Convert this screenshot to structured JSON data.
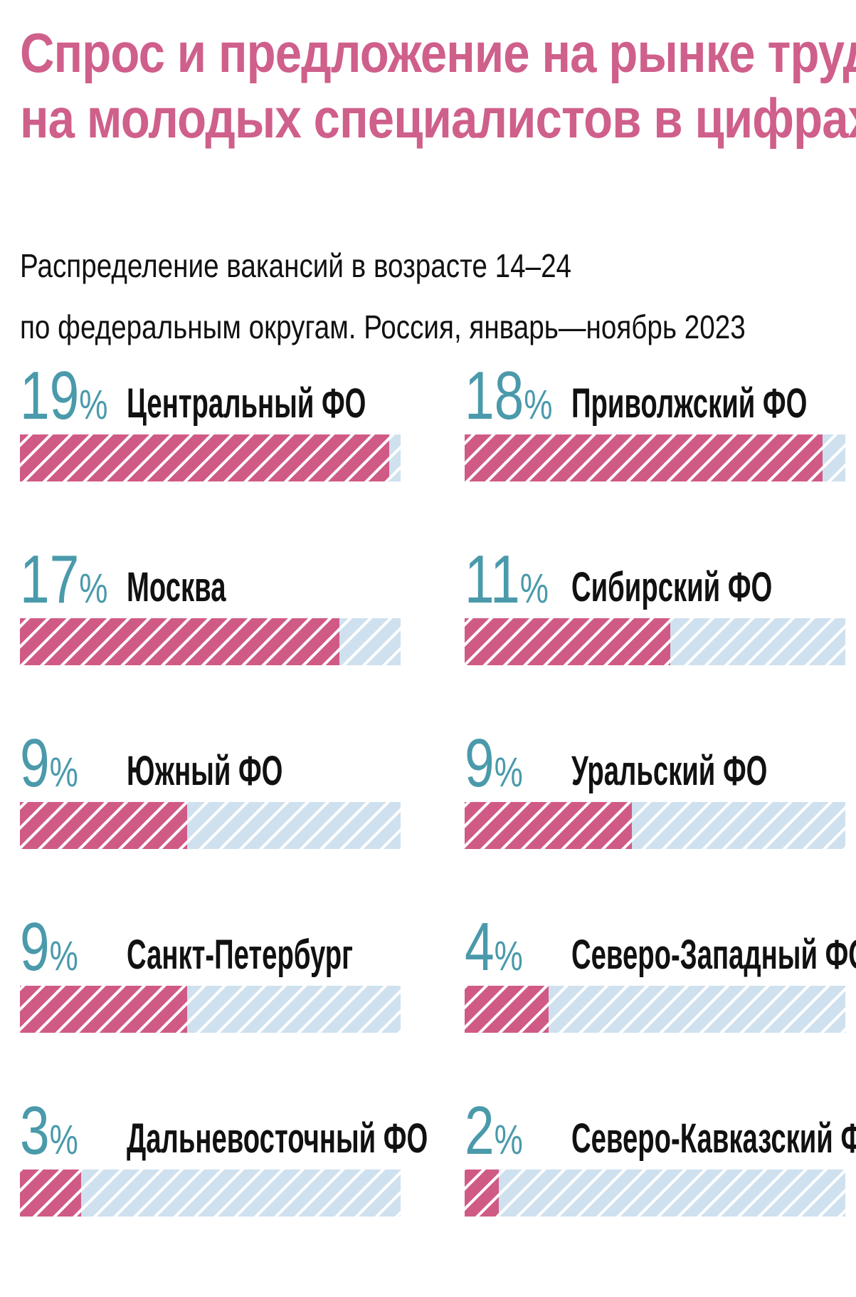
{
  "title_lines": [
    "Спрос и предложение на рынке труда",
    "на молодых специалистов в цифрах"
  ],
  "subtitle_lines": [
    "Распределение вакансий в возрасте 14–24",
    "по федеральным округам. Россия, январь—ноябрь 2023"
  ],
  "colors": {
    "title": "#cf5f8b",
    "percent": "#4a9aab",
    "bar_fill": "#d05a86",
    "bar_track": "#cfe1ef",
    "label": "#111111"
  },
  "chart_data": {
    "type": "bar",
    "orientation": "horizontal",
    "layout": "two-column small multiples",
    "unit": "%",
    "scale_max": 19.5,
    "categories": [
      "Центральный ФО",
      "Приволжский ФО",
      "Москва",
      "Сибирский ФО",
      "Южный ФО",
      "Уральский ФО",
      "Санкт-Петербург",
      "Северо-Западный ФО",
      "Дальневосточный ФО",
      "Северо-Кавказский ФО"
    ],
    "values": [
      19,
      18,
      17,
      11,
      9,
      9,
      9,
      4,
      3,
      2
    ],
    "bar_fractions": [
      0.97,
      0.94,
      0.84,
      0.54,
      0.44,
      0.44,
      0.44,
      0.22,
      0.16,
      0.09
    ]
  }
}
